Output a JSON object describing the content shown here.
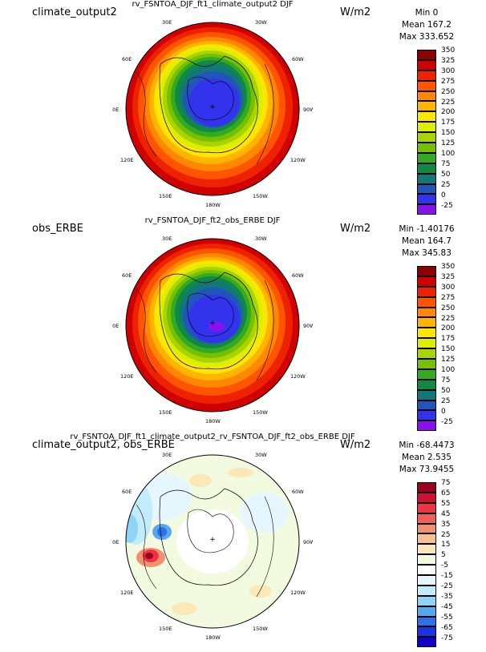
{
  "panels": [
    {
      "case": "climate_output2",
      "title": "rv_FSNTOA_DJF_ft1_climate_output2  DJF",
      "units": "W/m2",
      "stats": [
        "Min 0",
        "Mean 167.2",
        "Max 333.652"
      ],
      "levels": [
        "350",
        "325",
        "300",
        "275",
        "250",
        "225",
        "200",
        "175",
        "150",
        "125",
        "100",
        "75",
        "50",
        "25",
        "0",
        "-25"
      ],
      "colors": [
        "#8b0000",
        "#d00000",
        "#ee2200",
        "#ff5500",
        "#ff8800",
        "#ffb400",
        "#ffe600",
        "#ddee00",
        "#aad400",
        "#77c000",
        "#33aa22",
        "#118844",
        "#117777",
        "#2255bb",
        "#3333ee",
        "#8811ee"
      ],
      "lon_labels": [
        "30E",
        "30W",
        "60E",
        "60W",
        "90E",
        "90W",
        "120E",
        "120W",
        "150E",
        "150W",
        "180W"
      ]
    },
    {
      "case": "obs_ERBE",
      "title": "rv_FSNTOA_DJF_ft2_obs_ERBE  DJF",
      "units": "W/m2",
      "stats": [
        "Min -1.40176",
        "Mean 164.7",
        "Max 345.83"
      ],
      "levels": [
        "350",
        "325",
        "300",
        "275",
        "250",
        "225",
        "200",
        "175",
        "150",
        "125",
        "100",
        "75",
        "50",
        "25",
        "0",
        "-25"
      ],
      "colors": [
        "#8b0000",
        "#d00000",
        "#ee2200",
        "#ff5500",
        "#ff8800",
        "#ffb400",
        "#ffe600",
        "#ddee00",
        "#aad400",
        "#77c000",
        "#33aa22",
        "#118844",
        "#117777",
        "#2255bb",
        "#3333ee",
        "#8811ee"
      ],
      "lon_labels": [
        "30E",
        "30W",
        "60E",
        "60W",
        "90E",
        "90W",
        "120E",
        "120W",
        "150E",
        "150W",
        "180W"
      ]
    },
    {
      "case": "climate_output2, obs_ERBE",
      "title": "rv_FSNTOA_DJF_ft1_climate_output2_rv_FSNTOA_DJF_ft2_obs_ERBE  DJF",
      "units": "W/m2",
      "stats": [
        "Min -68.4473",
        "Mean 2.535",
        "Max 73.9455"
      ],
      "levels": [
        "75",
        "65",
        "55",
        "45",
        "35",
        "25",
        "15",
        "5",
        "-5",
        "-15",
        "-25",
        "-35",
        "-45",
        "-55",
        "-65",
        "-75"
      ],
      "colors": [
        "#9a0020",
        "#cc1133",
        "#ee3344",
        "#f0605a",
        "#f39070",
        "#f8c090",
        "#fbe8b8",
        "#f2fae0",
        "#ffffff",
        "#e6f6ff",
        "#c2ecfc",
        "#8fd4f7",
        "#55a8ee",
        "#2f6fe8",
        "#1a35dd",
        "#1100cc"
      ],
      "lon_labels": [
        "30E",
        "30W",
        "60E",
        "60W",
        "90E",
        "90W",
        "120E",
        "120W",
        "150E",
        "150W",
        "180W"
      ]
    }
  ]
}
